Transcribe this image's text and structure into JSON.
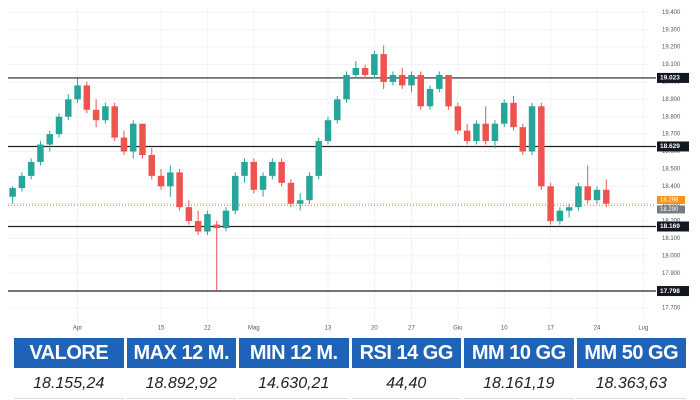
{
  "chart_data": {
    "type": "candlestick",
    "up_color": "#26a69a",
    "down_color": "#ef5350",
    "grid": true,
    "categories": [
      null,
      null,
      null,
      null,
      null,
      null,
      null,
      "Apr",
      null,
      null,
      null,
      null,
      null,
      null,
      null,
      null,
      "15",
      null,
      null,
      null,
      null,
      "22",
      null,
      null,
      null,
      null,
      "Mag",
      null,
      null,
      null,
      null,
      null,
      null,
      null,
      "13",
      null,
      null,
      null,
      null,
      "20",
      null,
      null,
      null,
      "27",
      null,
      null,
      null,
      null,
      "Giu",
      null,
      null,
      null,
      null,
      "10",
      null,
      null,
      null,
      null,
      "17",
      null,
      null,
      null,
      null,
      "24",
      null,
      null,
      null,
      null,
      "Lug"
    ],
    "open": [
      18340,
      18390,
      18460,
      18540,
      18640,
      18700,
      18800,
      18900,
      18980,
      18840,
      18780,
      18860,
      18680,
      18600,
      18760,
      18580,
      18460,
      18400,
      18480,
      18280,
      18200,
      18140,
      18180,
      18160,
      18260,
      18460,
      18540,
      18380,
      18460,
      18540,
      18420,
      18300,
      18320,
      18460,
      18660,
      18780,
      18900,
      19040,
      19080,
      19040,
      19160,
      19000,
      19040,
      18980,
      19040,
      18860,
      18960,
      19040,
      18860,
      18720,
      18660,
      18760,
      18660,
      18760,
      18880,
      18740,
      18600,
      18860,
      18400,
      18200,
      18260,
      18280,
      18400,
      18320,
      18380,
      null,
      null,
      null,
      null
    ],
    "high": [
      18400,
      18480,
      18560,
      18660,
      18720,
      18820,
      18930,
      19020,
      19000,
      18900,
      18880,
      18880,
      18720,
      18780,
      18760,
      18620,
      18500,
      18520,
      18500,
      18320,
      18260,
      18260,
      18200,
      18280,
      18480,
      18560,
      18560,
      18480,
      18560,
      18560,
      18440,
      18360,
      18480,
      18680,
      18800,
      18920,
      19060,
      19120,
      19100,
      19180,
      19210,
      19060,
      19080,
      19060,
      19060,
      18980,
      19060,
      19040,
      18880,
      18760,
      18780,
      18860,
      18780,
      18900,
      18920,
      18760,
      18880,
      18880,
      18420,
      18280,
      18300,
      18420,
      18520,
      18400,
      18440,
      null,
      null,
      null,
      null
    ],
    "low": [
      18300,
      18370,
      18440,
      18520,
      18600,
      18680,
      18780,
      18880,
      18820,
      18740,
      18760,
      18660,
      18580,
      18560,
      18560,
      18440,
      18380,
      18340,
      18260,
      18180,
      18120,
      18120,
      17798,
      18140,
      18240,
      18420,
      18360,
      18340,
      18440,
      18400,
      18280,
      18260,
      18300,
      18440,
      18640,
      18760,
      18880,
      19020,
      19020,
      19020,
      18960,
      18980,
      18960,
      18940,
      18840,
      18840,
      18940,
      18840,
      18700,
      18640,
      18640,
      18640,
      18620,
      18740,
      18720,
      18580,
      18580,
      18380,
      18180,
      18180,
      18220,
      18260,
      18300,
      18300,
      18280,
      null,
      null,
      null,
      null
    ],
    "close": [
      18390,
      18460,
      18540,
      18640,
      18700,
      18800,
      18900,
      18980,
      18840,
      18780,
      18860,
      18680,
      18600,
      18760,
      18580,
      18460,
      18400,
      18480,
      18280,
      18200,
      18140,
      18240,
      18160,
      18260,
      18460,
      18540,
      18380,
      18460,
      18540,
      18420,
      18300,
      18320,
      18460,
      18660,
      18780,
      18900,
      19040,
      19080,
      19040,
      19160,
      19000,
      19040,
      18980,
      19040,
      18860,
      18960,
      19040,
      18860,
      18720,
      18660,
      18760,
      18660,
      18760,
      18880,
      18740,
      18600,
      18860,
      18400,
      18200,
      18260,
      18280,
      18400,
      18320,
      18380,
      18300,
      null,
      null,
      null,
      null
    ],
    "ylim": [
      17620,
      19425
    ],
    "yticks": [
      {
        "value": 17700,
        "label": "17.700"
      },
      {
        "value": 17800,
        "label": "17.800"
      },
      {
        "value": 17900,
        "label": "17.900"
      },
      {
        "value": 18000,
        "label": "18.000"
      },
      {
        "value": 18100,
        "label": "18.100"
      },
      {
        "value": 18200,
        "label": "18.200"
      },
      {
        "value": 18300,
        "label": "18.300"
      },
      {
        "value": 18400,
        "label": "18.400"
      },
      {
        "value": 18500,
        "label": "18.500"
      },
      {
        "value": 18600,
        "label": "18.600"
      },
      {
        "value": 18700,
        "label": "18.700"
      },
      {
        "value": 18800,
        "label": "18.800"
      },
      {
        "value": 18900,
        "label": "18.900"
      },
      {
        "value": 19000,
        "label": "19.000"
      },
      {
        "value": 19100,
        "label": "19.100"
      },
      {
        "value": 19200,
        "label": "19.200"
      },
      {
        "value": 19300,
        "label": "19.300"
      },
      {
        "value": 19400,
        "label": "19.400"
      }
    ],
    "levels": [
      {
        "value": 19023,
        "label": "19.023"
      },
      {
        "value": 18629,
        "label": "18.629"
      },
      {
        "value": 18169,
        "label": "18.169"
      },
      {
        "value": 17798,
        "label": "17.798"
      }
    ],
    "price_tags": [
      {
        "value": 18298,
        "label": "18.298",
        "color": "#f7931a"
      },
      {
        "value": 18290,
        "label": "18.290",
        "color": "#787b86"
      }
    ]
  },
  "table": {
    "headers": [
      "VALORE",
      "MAX 12 M.",
      "MIN 12 M.",
      "RSI 14 GG",
      "MM 10 GG",
      "MM 50 GG"
    ],
    "values": [
      "18.155,24",
      "18.892,92",
      "14.630,21",
      "44,40",
      "18.161,19",
      "18.363,63"
    ]
  }
}
